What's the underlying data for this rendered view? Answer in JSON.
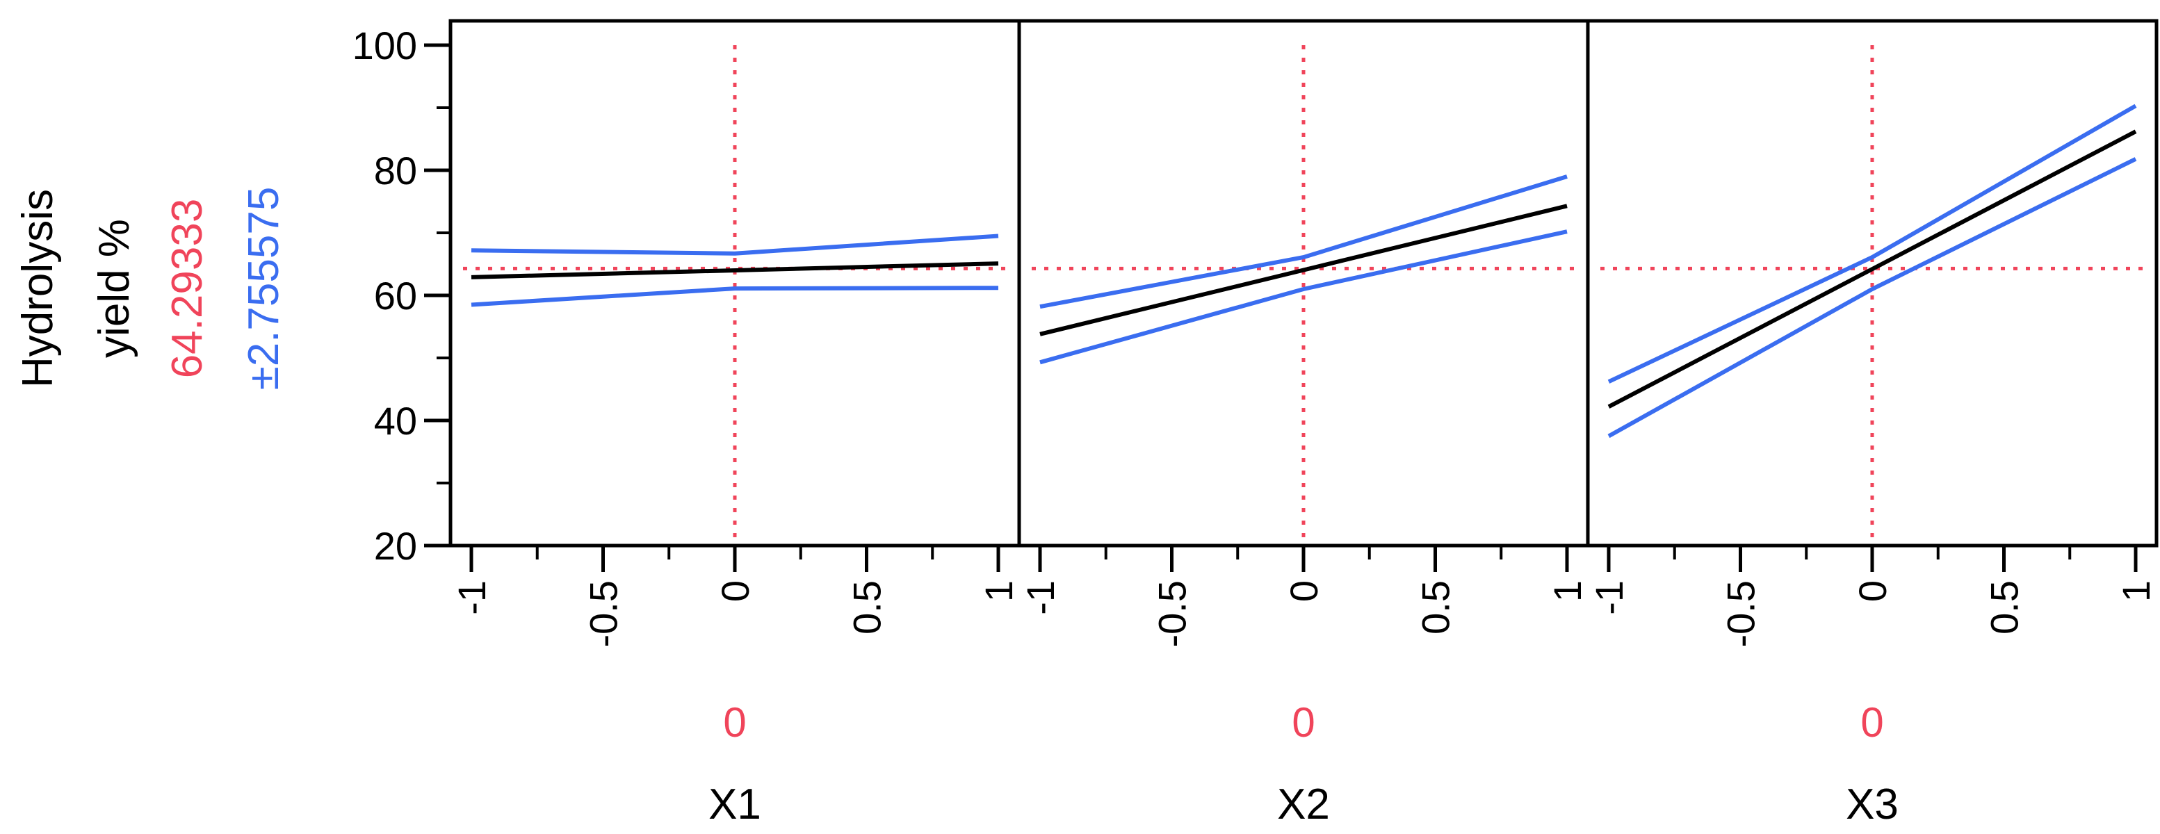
{
  "colors": {
    "prediction": "#000000",
    "confidence": "#3a6df0",
    "current": "#f0445a",
    "frame": "#000000"
  },
  "response": {
    "name_line1": "Hydrolysis",
    "name_line2": "yield %",
    "current_value": "64.29333",
    "interval": "±2.755575"
  },
  "chart_data": {
    "type": "line",
    "title": "",
    "ylabel": "Hydrolysis yield %",
    "ylim": [
      20,
      100
    ],
    "yticks": [
      20,
      40,
      60,
      80,
      100
    ],
    "ytick_labels": [
      "20",
      "40",
      "60",
      "80",
      "100"
    ],
    "xlim": [
      -1,
      1
    ],
    "xticks": [
      -1,
      -0.5,
      0,
      0.5,
      1
    ],
    "xtick_labels": [
      "-1",
      "-0.5",
      "0",
      "0.5",
      "1"
    ],
    "current_response": 64.29333,
    "grid": false,
    "panels": [
      {
        "xlabel": "X1",
        "current_x": 0,
        "current_x_label": "0",
        "series": [
          {
            "name": "",
            "role": "prediction",
            "x": [
              -1,
              1
            ],
            "y": [
              62.9,
              65.1
            ]
          },
          {
            "name": "",
            "role": "upper",
            "x": [
              -1,
              0,
              1
            ],
            "y": [
              67.2,
              66.7,
              69.5
            ]
          },
          {
            "name": "",
            "role": "lower",
            "x": [
              -1,
              0,
              1
            ],
            "y": [
              58.5,
              61.1,
              61.2
            ]
          }
        ]
      },
      {
        "xlabel": "X2",
        "current_x": 0,
        "current_x_label": "0",
        "series": [
          {
            "name": "",
            "role": "prediction",
            "x": [
              -1,
              1
            ],
            "y": [
              53.8,
              74.3
            ]
          },
          {
            "name": "",
            "role": "upper",
            "x": [
              -1,
              0,
              1
            ],
            "y": [
              58.2,
              66.1,
              79.0
            ]
          },
          {
            "name": "",
            "role": "lower",
            "x": [
              -1,
              0,
              1
            ],
            "y": [
              49.3,
              61.0,
              70.2
            ]
          }
        ]
      },
      {
        "xlabel": "X3",
        "current_x": 0,
        "current_x_label": "0",
        "series": [
          {
            "name": "",
            "role": "prediction",
            "x": [
              -1,
              1
            ],
            "y": [
              42.2,
              86.2
            ]
          },
          {
            "name": "",
            "role": "upper",
            "x": [
              -1,
              0,
              1
            ],
            "y": [
              46.2,
              66.1,
              90.3
            ]
          },
          {
            "name": "",
            "role": "lower",
            "x": [
              -1,
              0,
              1
            ],
            "y": [
              37.5,
              61.0,
              81.8
            ]
          }
        ]
      }
    ]
  }
}
